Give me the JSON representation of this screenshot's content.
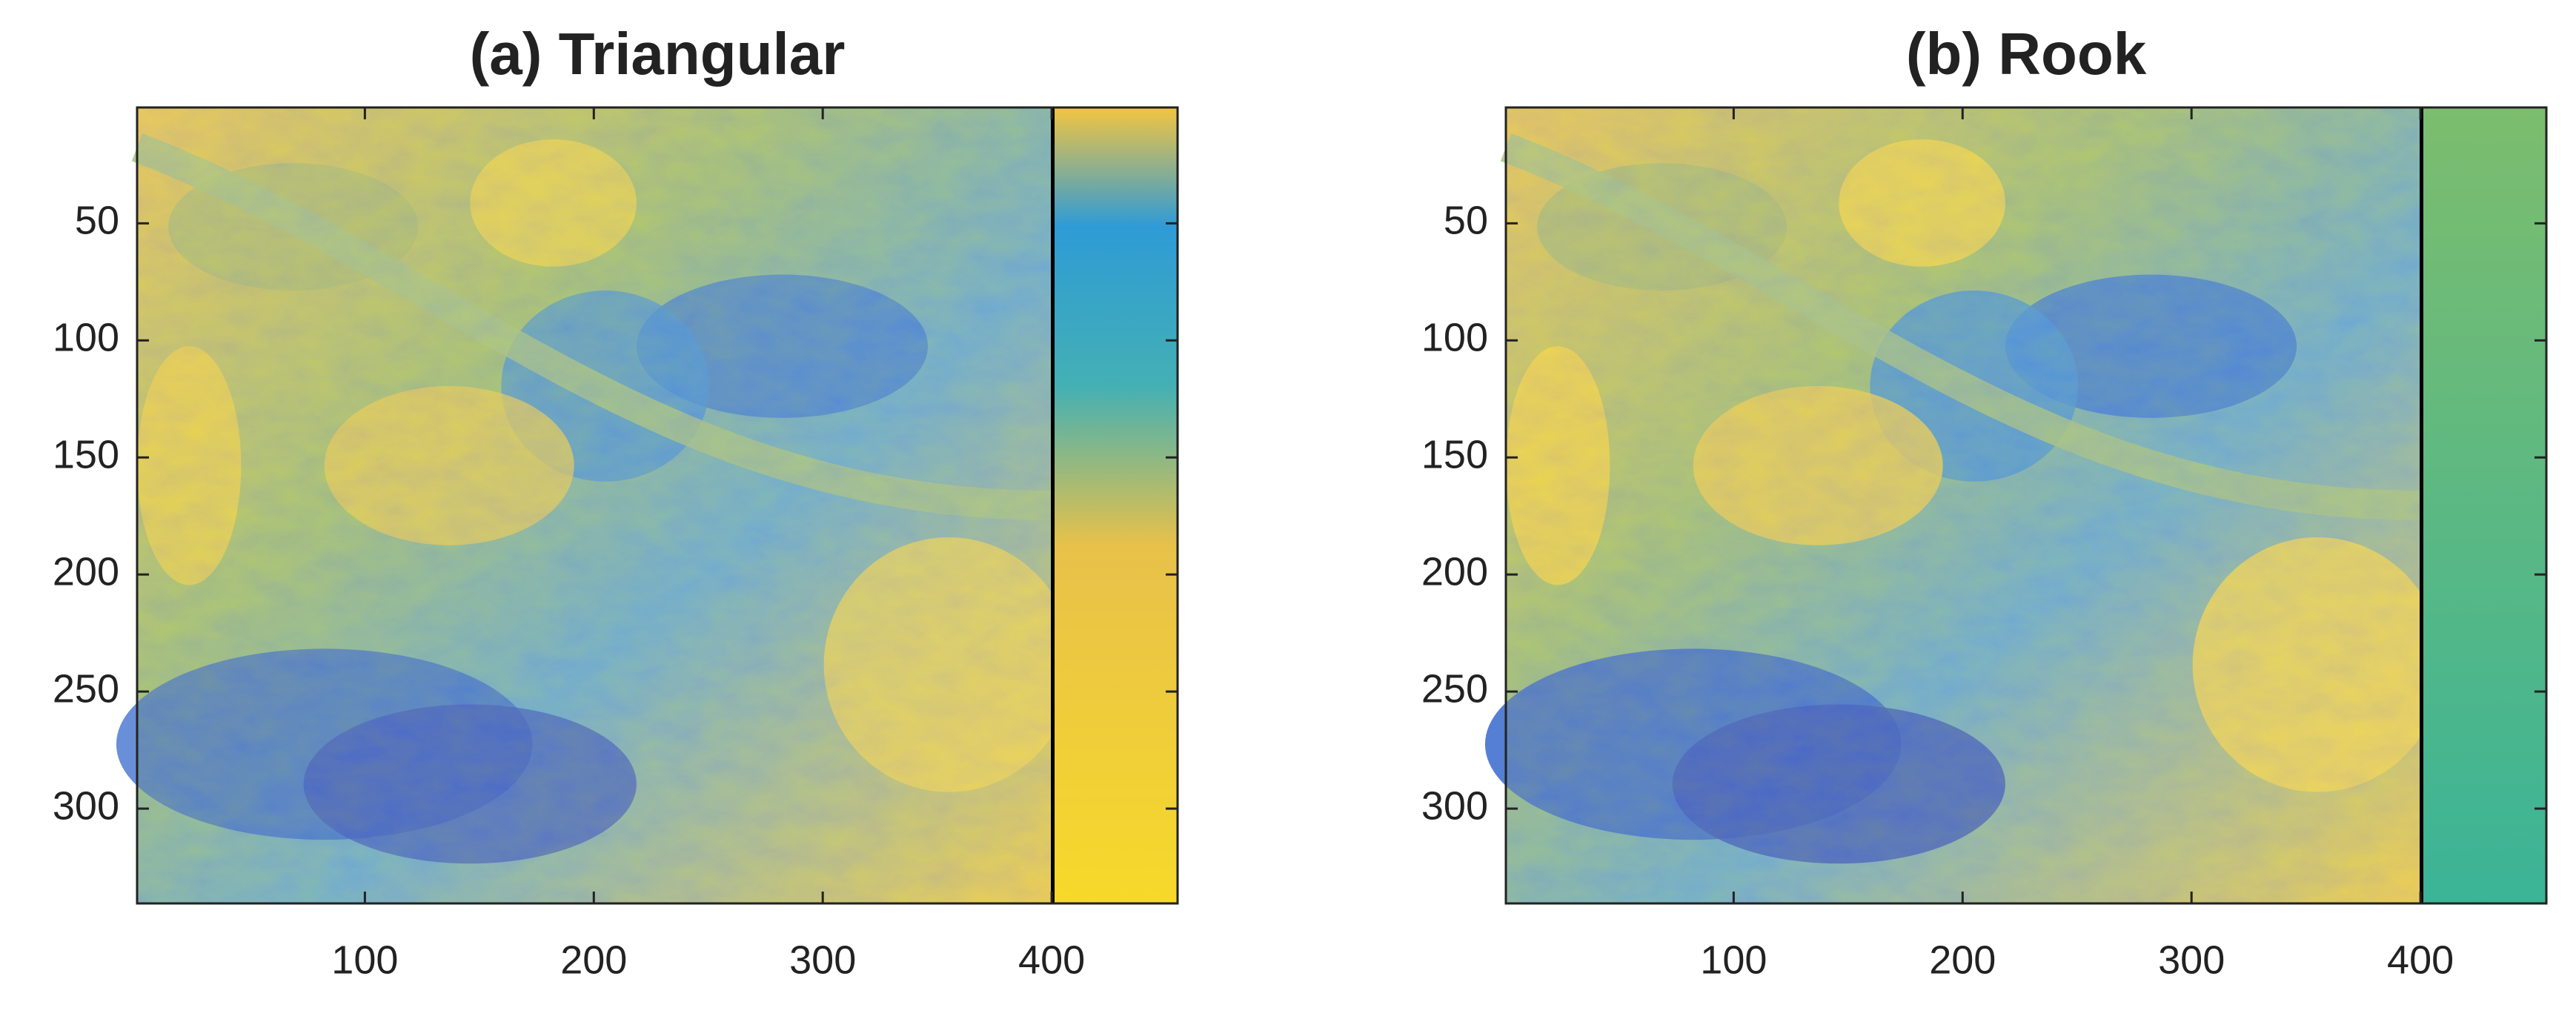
{
  "chart_data": [
    {
      "type": "image",
      "title": "(a)  Triangular",
      "xlim": [
        0.5,
        455
      ],
      "ylim": [
        0.5,
        340.5
      ],
      "y_reversed": true,
      "xticks": [
        100,
        200,
        300,
        400
      ],
      "yticks": [
        50,
        100,
        150,
        200,
        250,
        300
      ]
    },
    {
      "type": "image",
      "title": "(b)  Rook",
      "xlim": [
        0.5,
        455
      ],
      "ylim": [
        0.5,
        340.5
      ],
      "y_reversed": true,
      "xticks": [
        100,
        200,
        300,
        400
      ],
      "yticks": [
        50,
        100,
        150,
        200,
        250,
        300
      ]
    }
  ]
}
